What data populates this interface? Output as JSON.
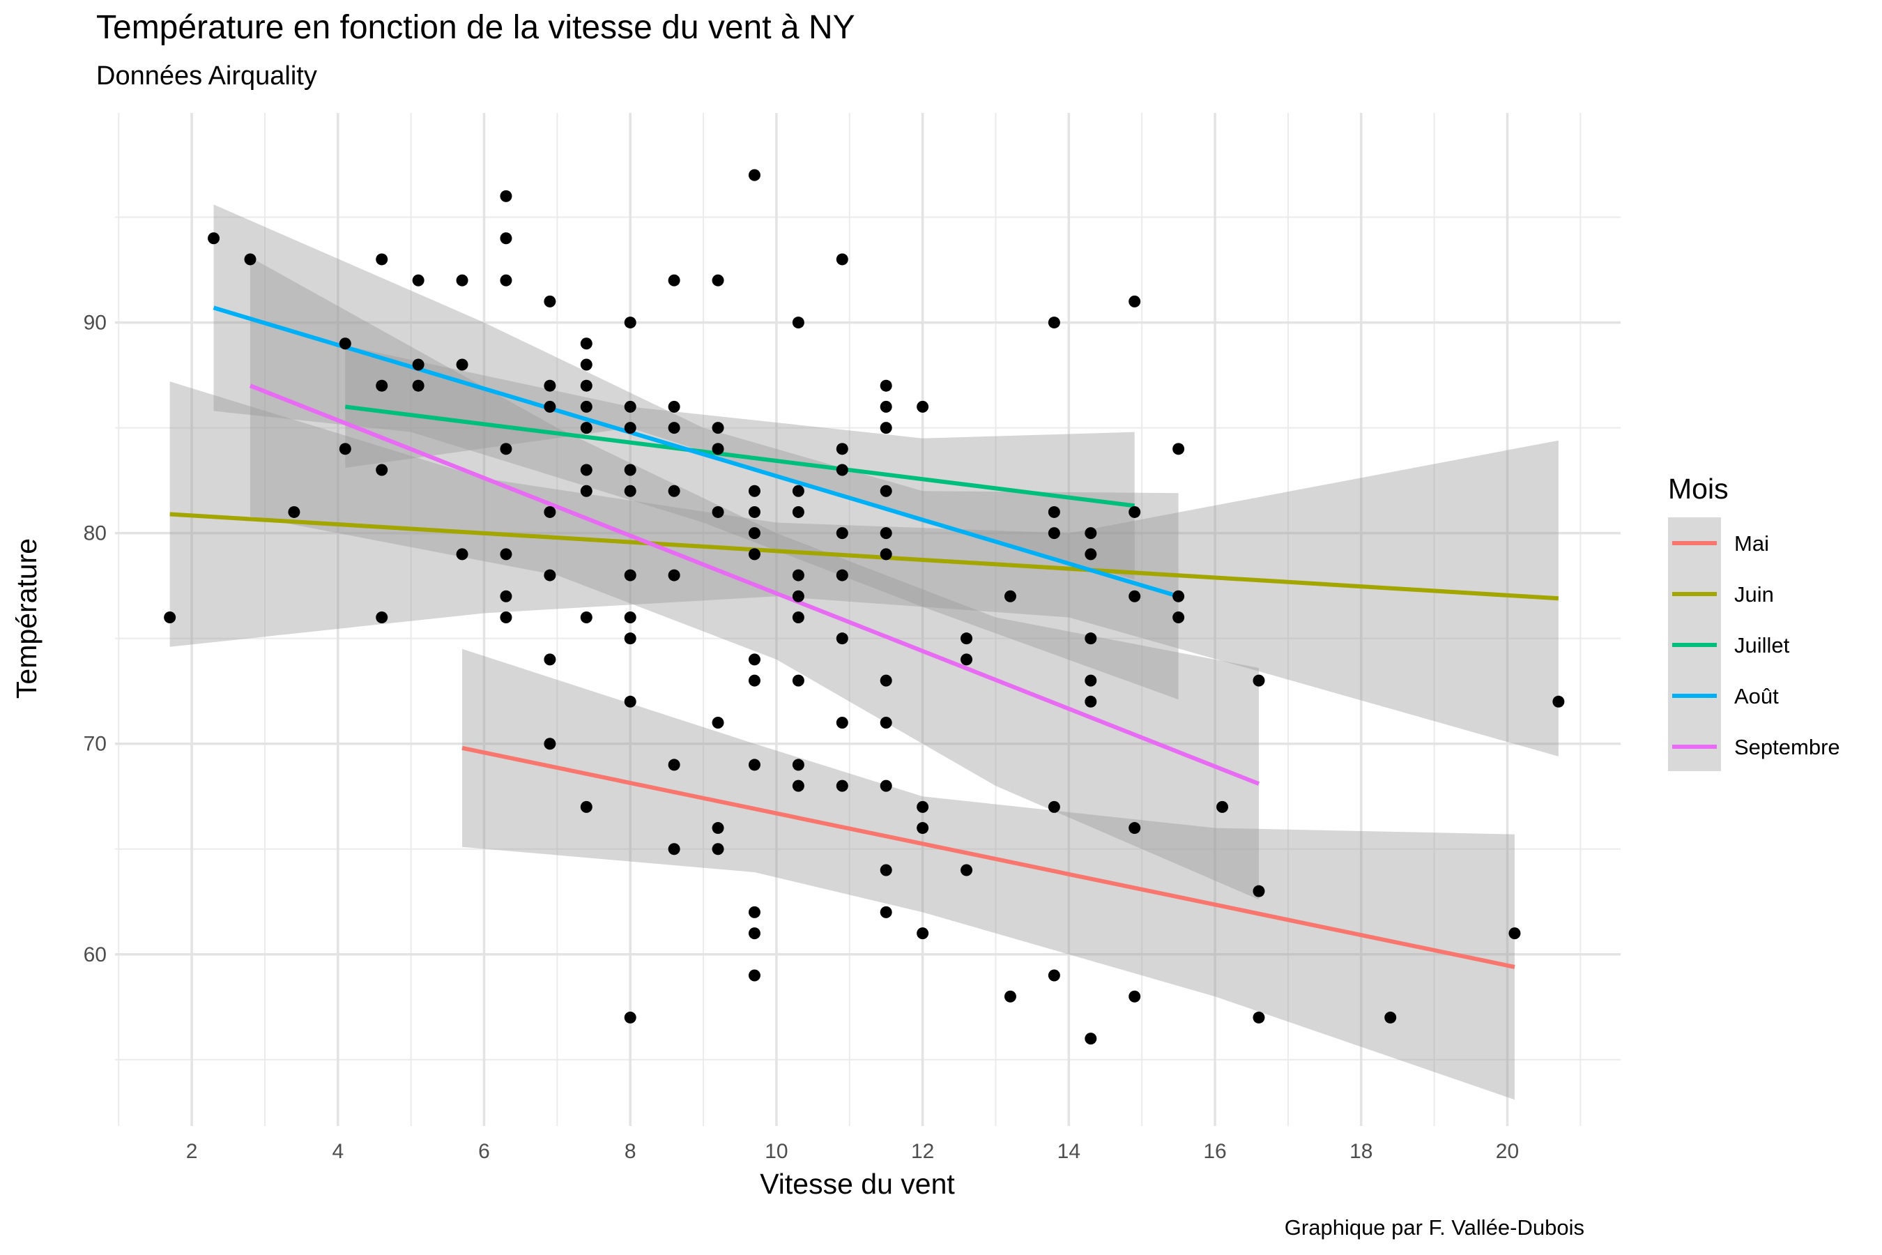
{
  "header": {
    "title": "Température en fonction de la vitesse du vent à NY",
    "subtitle": "Données Airquality"
  },
  "caption": "Graphique par F. Vallée-Dubois",
  "chart_data": {
    "type": "scatter",
    "title": "Température en fonction de la vitesse du vent à NY",
    "subtitle": "Données Airquality",
    "xlabel": "Vitesse du vent",
    "ylabel": "Température",
    "xlim": [
      0.95,
      21.55
    ],
    "ylim": [
      51.85,
      99.95
    ],
    "xticks": [
      2,
      4,
      6,
      8,
      10,
      12,
      14,
      16,
      18,
      20
    ],
    "yticks": [
      60,
      70,
      80,
      90
    ],
    "grid": true,
    "legend": {
      "title": "Mois",
      "position": "right"
    },
    "points": [
      [
        1.7,
        76
      ],
      [
        2.3,
        94
      ],
      [
        2.8,
        93
      ],
      [
        3.4,
        81
      ],
      [
        4.1,
        89
      ],
      [
        4.1,
        84
      ],
      [
        4.6,
        93
      ],
      [
        4.6,
        87
      ],
      [
        4.6,
        83
      ],
      [
        4.6,
        76
      ],
      [
        5.1,
        92
      ],
      [
        5.1,
        88
      ],
      [
        5.1,
        87
      ],
      [
        5.7,
        92
      ],
      [
        5.7,
        88
      ],
      [
        5.7,
        79
      ],
      [
        6.3,
        96
      ],
      [
        6.3,
        94
      ],
      [
        6.3,
        92
      ],
      [
        6.3,
        84
      ],
      [
        6.3,
        79
      ],
      [
        6.3,
        77
      ],
      [
        6.3,
        76
      ],
      [
        6.9,
        91
      ],
      [
        6.9,
        87
      ],
      [
        6.9,
        86
      ],
      [
        6.9,
        81
      ],
      [
        6.9,
        78
      ],
      [
        6.9,
        74
      ],
      [
        6.9,
        70
      ],
      [
        7.4,
        89
      ],
      [
        7.4,
        88
      ],
      [
        7.4,
        87
      ],
      [
        7.4,
        86
      ],
      [
        7.4,
        85
      ],
      [
        7.4,
        83
      ],
      [
        7.4,
        82
      ],
      [
        7.4,
        76
      ],
      [
        7.4,
        67
      ],
      [
        8.0,
        90
      ],
      [
        8.0,
        86
      ],
      [
        8.0,
        85
      ],
      [
        8.0,
        83
      ],
      [
        8.0,
        82
      ],
      [
        8.0,
        78
      ],
      [
        8.0,
        76
      ],
      [
        8.0,
        75
      ],
      [
        8.0,
        72
      ],
      [
        8.0,
        57
      ],
      [
        8.6,
        92
      ],
      [
        8.6,
        86
      ],
      [
        8.6,
        85
      ],
      [
        8.6,
        82
      ],
      [
        8.6,
        78
      ],
      [
        8.6,
        69
      ],
      [
        8.6,
        65
      ],
      [
        9.2,
        92
      ],
      [
        9.2,
        85
      ],
      [
        9.2,
        84
      ],
      [
        9.2,
        81
      ],
      [
        9.2,
        71
      ],
      [
        9.2,
        66
      ],
      [
        9.2,
        65
      ],
      [
        9.7,
        97
      ],
      [
        9.7,
        82
      ],
      [
        9.7,
        81
      ],
      [
        9.7,
        80
      ],
      [
        9.7,
        79
      ],
      [
        9.7,
        74
      ],
      [
        9.7,
        73
      ],
      [
        9.7,
        69
      ],
      [
        9.7,
        62
      ],
      [
        9.7,
        61
      ],
      [
        9.7,
        59
      ],
      [
        10.3,
        90
      ],
      [
        10.3,
        82
      ],
      [
        10.3,
        81
      ],
      [
        10.3,
        78
      ],
      [
        10.3,
        77
      ],
      [
        10.3,
        76
      ],
      [
        10.3,
        73
      ],
      [
        10.3,
        69
      ],
      [
        10.3,
        68
      ],
      [
        10.9,
        93
      ],
      [
        10.9,
        84
      ],
      [
        10.9,
        83
      ],
      [
        10.9,
        80
      ],
      [
        10.9,
        78
      ],
      [
        10.9,
        75
      ],
      [
        10.9,
        71
      ],
      [
        10.9,
        68
      ],
      [
        11.5,
        87
      ],
      [
        11.5,
        86
      ],
      [
        11.5,
        85
      ],
      [
        11.5,
        82
      ],
      [
        11.5,
        80
      ],
      [
        11.5,
        79
      ],
      [
        11.5,
        73
      ],
      [
        11.5,
        71
      ],
      [
        11.5,
        68
      ],
      [
        11.5,
        64
      ],
      [
        11.5,
        62
      ],
      [
        12.0,
        86
      ],
      [
        12.0,
        67
      ],
      [
        12.0,
        66
      ],
      [
        12.0,
        61
      ],
      [
        12.6,
        75
      ],
      [
        12.6,
        74
      ],
      [
        12.6,
        64
      ],
      [
        13.2,
        77
      ],
      [
        13.2,
        58
      ],
      [
        13.8,
        90
      ],
      [
        13.8,
        81
      ],
      [
        13.8,
        80
      ],
      [
        13.8,
        67
      ],
      [
        13.8,
        59
      ],
      [
        14.3,
        80
      ],
      [
        14.3,
        79
      ],
      [
        14.3,
        75
      ],
      [
        14.3,
        73
      ],
      [
        14.3,
        72
      ],
      [
        14.3,
        56
      ],
      [
        14.9,
        91
      ],
      [
        14.9,
        81
      ],
      [
        14.9,
        77
      ],
      [
        14.9,
        66
      ],
      [
        14.9,
        58
      ],
      [
        15.5,
        84
      ],
      [
        15.5,
        77
      ],
      [
        15.5,
        76
      ],
      [
        16.1,
        67
      ],
      [
        16.6,
        73
      ],
      [
        16.6,
        63
      ],
      [
        16.6,
        57
      ],
      [
        18.4,
        57
      ],
      [
        20.1,
        61
      ],
      [
        20.7,
        72
      ]
    ],
    "series": [
      {
        "name": "Mai",
        "color": "#F8766D",
        "line": [
          [
            5.7,
            69.8
          ],
          [
            20.1,
            59.4
          ]
        ],
        "band_upper": [
          [
            5.7,
            74.5
          ],
          [
            9.7,
            70.0
          ],
          [
            12.0,
            67.5
          ],
          [
            16.0,
            66.0
          ],
          [
            20.1,
            65.7
          ]
        ],
        "band_lower": [
          [
            5.7,
            65.1
          ],
          [
            9.7,
            63.9
          ],
          [
            12.0,
            62.0
          ],
          [
            16.0,
            58.0
          ],
          [
            20.1,
            53.1
          ]
        ]
      },
      {
        "name": "Juin",
        "color": "#A3A500",
        "line": [
          [
            1.7,
            80.9
          ],
          [
            20.7,
            76.9
          ]
        ],
        "band_upper": [
          [
            1.7,
            87.2
          ],
          [
            6.0,
            82.6
          ],
          [
            10.0,
            80.5
          ],
          [
            14.0,
            80.0
          ],
          [
            20.7,
            84.4
          ]
        ],
        "band_lower": [
          [
            1.7,
            74.6
          ],
          [
            6.0,
            76.2
          ],
          [
            10.0,
            77.0
          ],
          [
            14.0,
            76.0
          ],
          [
            20.7,
            69.4
          ]
        ]
      },
      {
        "name": "Juillet",
        "color": "#00BF7D",
        "line": [
          [
            4.1,
            86.0
          ],
          [
            14.9,
            81.3
          ]
        ],
        "band_upper": [
          [
            4.1,
            88.9
          ],
          [
            8.0,
            86.0
          ],
          [
            12.0,
            84.5
          ],
          [
            14.9,
            84.8
          ]
        ],
        "band_lower": [
          [
            4.1,
            83.1
          ],
          [
            8.0,
            85.0
          ],
          [
            12.0,
            80.5
          ],
          [
            14.9,
            77.8
          ]
        ]
      },
      {
        "name": "Août",
        "color": "#00B0F6",
        "line": [
          [
            2.3,
            90.7
          ],
          [
            15.5,
            77.0
          ]
        ],
        "band_upper": [
          [
            2.3,
            95.6
          ],
          [
            6.0,
            90.0
          ],
          [
            9.0,
            85.0
          ],
          [
            12.0,
            82.0
          ],
          [
            15.5,
            81.9
          ]
        ],
        "band_lower": [
          [
            2.3,
            85.8
          ],
          [
            5.0,
            84.8
          ],
          [
            9.0,
            80.5
          ],
          [
            12.0,
            76.5
          ],
          [
            15.5,
            72.1
          ]
        ]
      },
      {
        "name": "Septembre",
        "color": "#E76BF3",
        "line": [
          [
            2.8,
            87.0
          ],
          [
            16.6,
            68.1
          ]
        ],
        "band_upper": [
          [
            2.8,
            93.1
          ],
          [
            7.0,
            85.0
          ],
          [
            10.0,
            80.0
          ],
          [
            13.0,
            76.0
          ],
          [
            16.6,
            73.6
          ]
        ],
        "band_lower": [
          [
            2.8,
            80.8
          ],
          [
            7.0,
            78.0
          ],
          [
            10.0,
            74.0
          ],
          [
            13.0,
            68.0
          ],
          [
            16.6,
            62.6
          ]
        ]
      }
    ]
  }
}
